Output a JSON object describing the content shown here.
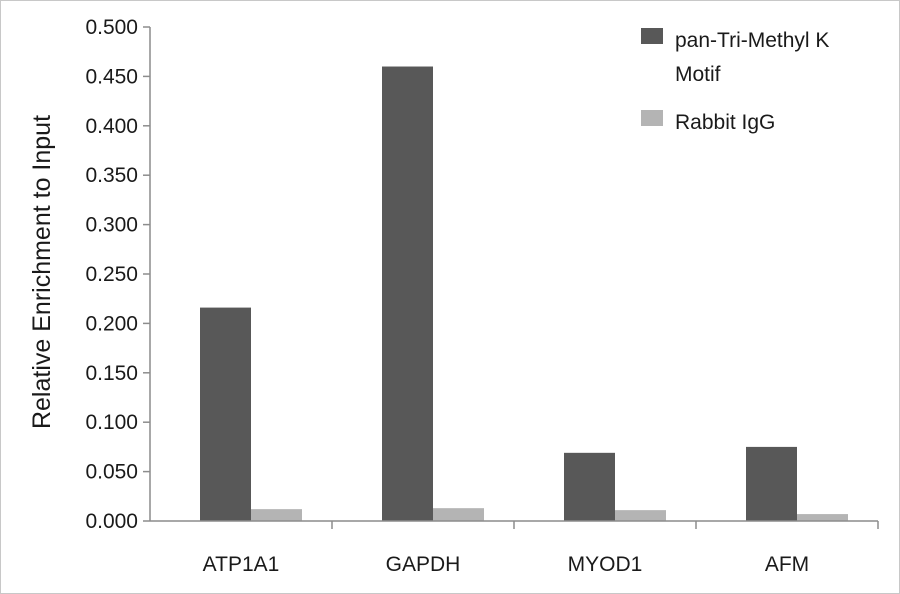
{
  "chart_data": {
    "type": "bar",
    "categories": [
      "ATP1A1",
      "GAPDH",
      "MYOD1",
      "AFM"
    ],
    "series": [
      {
        "name": "pan-Tri-Methyl K Motif",
        "legend_lines": [
          "pan-Tri-Methyl K",
          "Motif"
        ],
        "color": "#585858",
        "values": [
          0.216,
          0.46,
          0.069,
          0.075
        ]
      },
      {
        "name": "Rabbit IgG",
        "legend_lines": [
          "Rabbit IgG"
        ],
        "color": "#b4b4b4",
        "values": [
          0.012,
          0.013,
          0.011,
          0.007
        ]
      }
    ],
    "ylabel": "Relative Enrichment to Input",
    "xlabel": "",
    "title": "",
    "ylim": [
      0,
      0.5
    ],
    "yticks": [
      "0.000",
      "0.050",
      "0.100",
      "0.150",
      "0.200",
      "0.250",
      "0.300",
      "0.350",
      "0.400",
      "0.450",
      "0.500"
    ],
    "grid": false,
    "legend_position": "top-right"
  }
}
